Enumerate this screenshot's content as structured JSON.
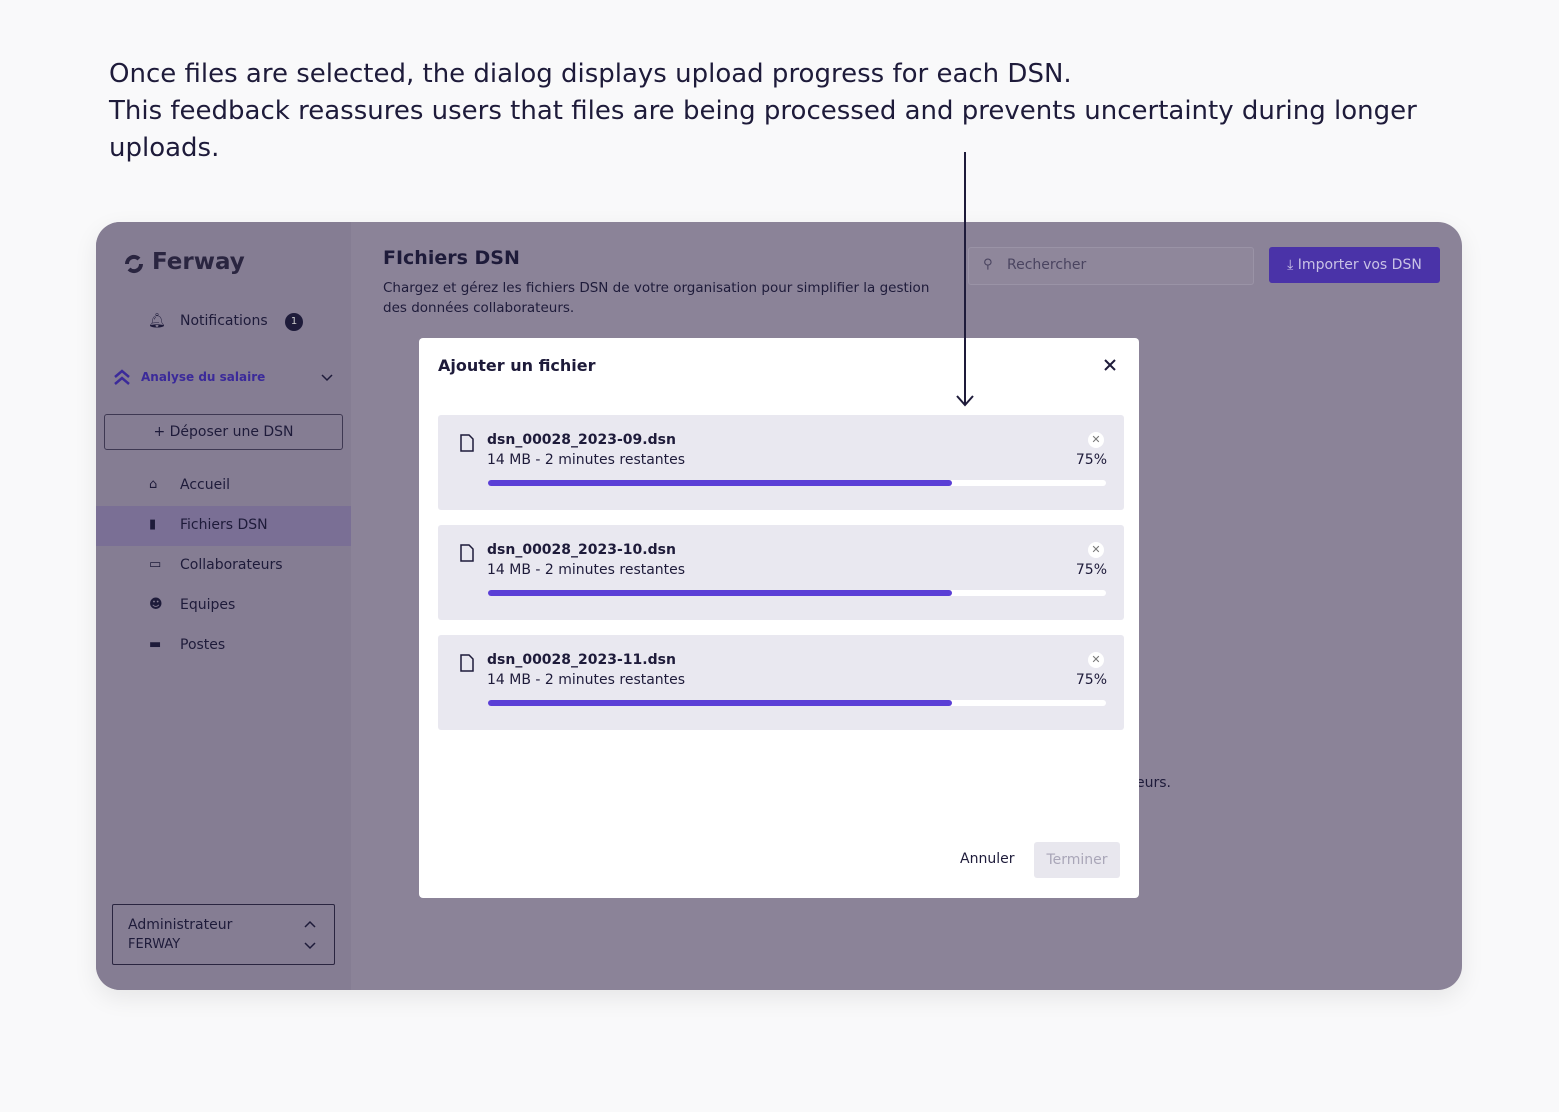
{
  "annotation": {
    "lines": [
      "Once files are selected, the dialog displays upload progress for each DSN.",
      "This feedback reassures users that files are being processed and prevents uncertainty during longer uploads."
    ]
  },
  "sidebar": {
    "logo": "Ferway",
    "notifications": {
      "label": "Notifications",
      "badge": "1"
    },
    "section": "Analyse du salaire",
    "upload_button": "Déposer une DSN",
    "nav": [
      "Accueil",
      "Fichiers DSN",
      "Collaborateurs",
      "Equipes",
      "Postes"
    ],
    "user": {
      "role": "Administrateur",
      "org": "FERWAY"
    }
  },
  "header": {
    "title": "FIchiers DSN",
    "description": "Chargez et gérez les fichiers DSN de votre organisation pour simplifier la gestion des données collaborateurs.",
    "search_placeholder": "Rechercher",
    "import_button": "Importer vos DSN"
  },
  "background_fragment": "eurs.",
  "dialog": {
    "title": "Ajouter un fichier",
    "files": [
      {
        "name": "dsn_00028_2023-09.dsn",
        "details": "14 MB - 2 minutes restantes",
        "progress": 75,
        "progress_label": "75%"
      },
      {
        "name": "dsn_00028_2023-10.dsn",
        "details": "14 MB - 2 minutes restantes",
        "progress": 75,
        "progress_label": "75%"
      },
      {
        "name": "dsn_00028_2023-11.dsn",
        "details": "14 MB - 2 minutes restantes",
        "progress": 75,
        "progress_label": "75%"
      }
    ],
    "cancel": "Annuler",
    "finish": "Terminer"
  }
}
